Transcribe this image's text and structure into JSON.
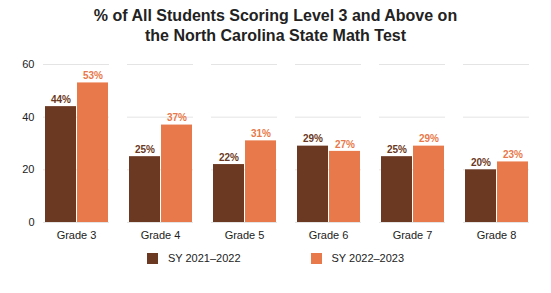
{
  "chart_data": {
    "type": "bar",
    "title": "% of All Students Scoring Level 3 and Above on the North Carolina State Math Test",
    "categories": [
      "Grade 3",
      "Grade 4",
      "Grade 5",
      "Grade 6",
      "Grade 7",
      "Grade 8"
    ],
    "series": [
      {
        "name": "SY 2021–2022",
        "color": "#6b3822",
        "values": [
          44,
          25,
          22,
          29,
          25,
          20
        ],
        "value_labels": [
          "44%",
          "25%",
          "22%",
          "29%",
          "25%",
          "20%"
        ]
      },
      {
        "name": "SY 2022–2023",
        "color": "#e8794a",
        "values": [
          53,
          37,
          31,
          27,
          29,
          23
        ],
        "value_labels": [
          "53%",
          "37%",
          "31%",
          "27%",
          "29%",
          "23%"
        ]
      }
    ],
    "ylim": [
      0,
      60
    ],
    "yticks": [
      0,
      20,
      40,
      60
    ],
    "grid": true,
    "legend": "bottom",
    "data_labels": true
  }
}
